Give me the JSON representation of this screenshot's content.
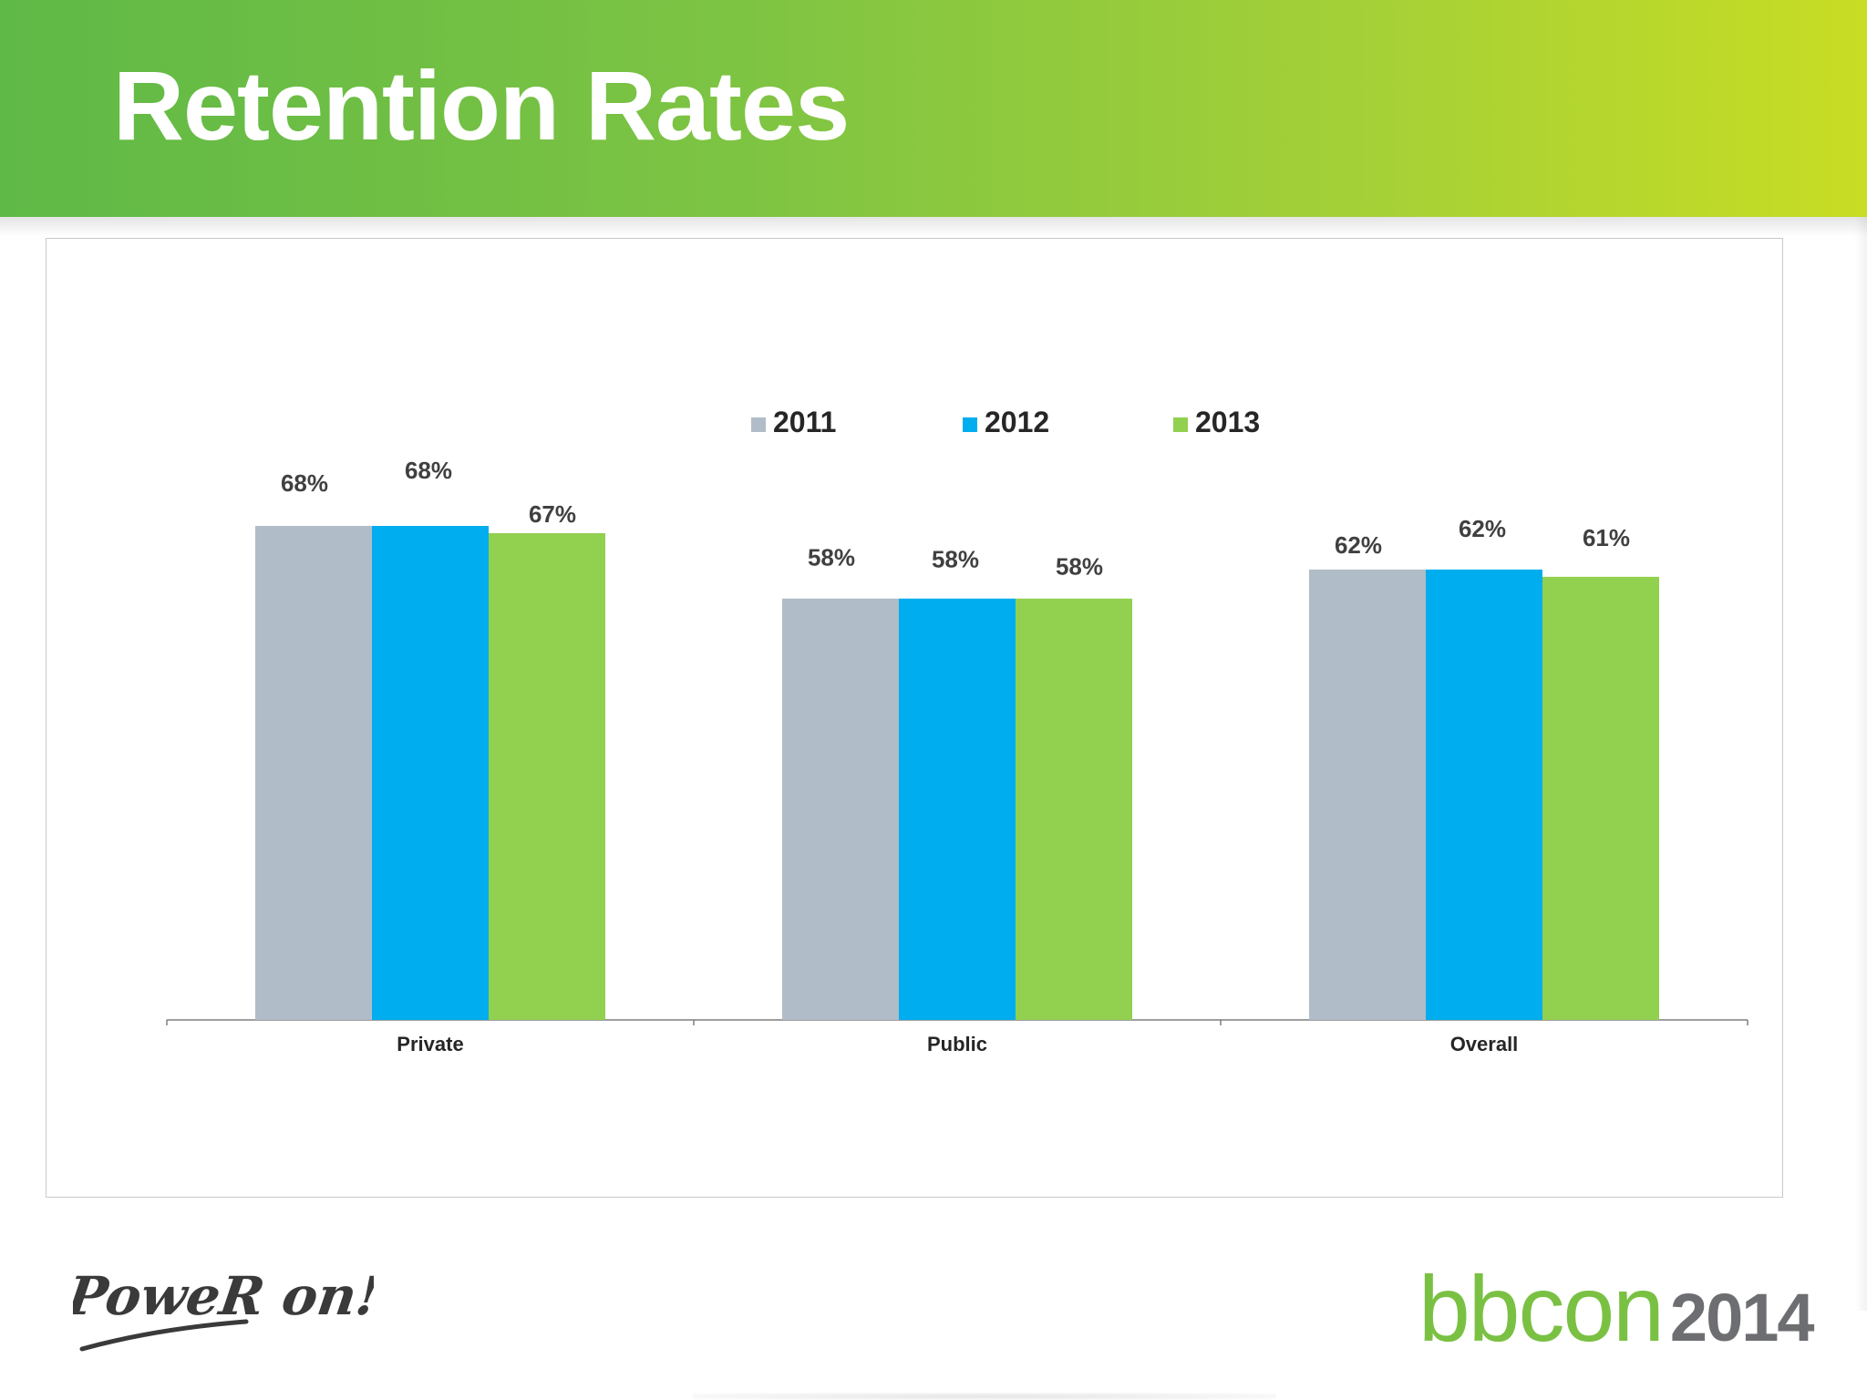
{
  "header": {
    "title": "Retention Rates"
  },
  "footer": {
    "poweron_text": "PoweR on!",
    "bbcon_word": "bbcon",
    "bbcon_year": "2014"
  },
  "colors": {
    "header_start": "#5fb946",
    "header_end": "#c8dd24",
    "series_2011": "#b0bcc7",
    "series_2012": "#00adee",
    "series_2013": "#92d050"
  },
  "chart_data": {
    "type": "bar",
    "title": "",
    "xlabel": "",
    "ylabel": "",
    "ylim": [
      0,
      80
    ],
    "grid": false,
    "legend": "top-center",
    "categories": [
      "Private",
      "Public",
      "Overall"
    ],
    "series": [
      {
        "name": "2011",
        "color": "#b0bcc7",
        "values": [
          68,
          58,
          62
        ],
        "labels": [
          "68%",
          "58%",
          "62%"
        ]
      },
      {
        "name": "2012",
        "color": "#00adee",
        "values": [
          68,
          58,
          62
        ],
        "labels": [
          "68%",
          "58%",
          "62%"
        ]
      },
      {
        "name": "2013",
        "color": "#92d050",
        "values": [
          67,
          58,
          61
        ],
        "labels": [
          "67%",
          "58%",
          "61%"
        ]
      }
    ]
  }
}
